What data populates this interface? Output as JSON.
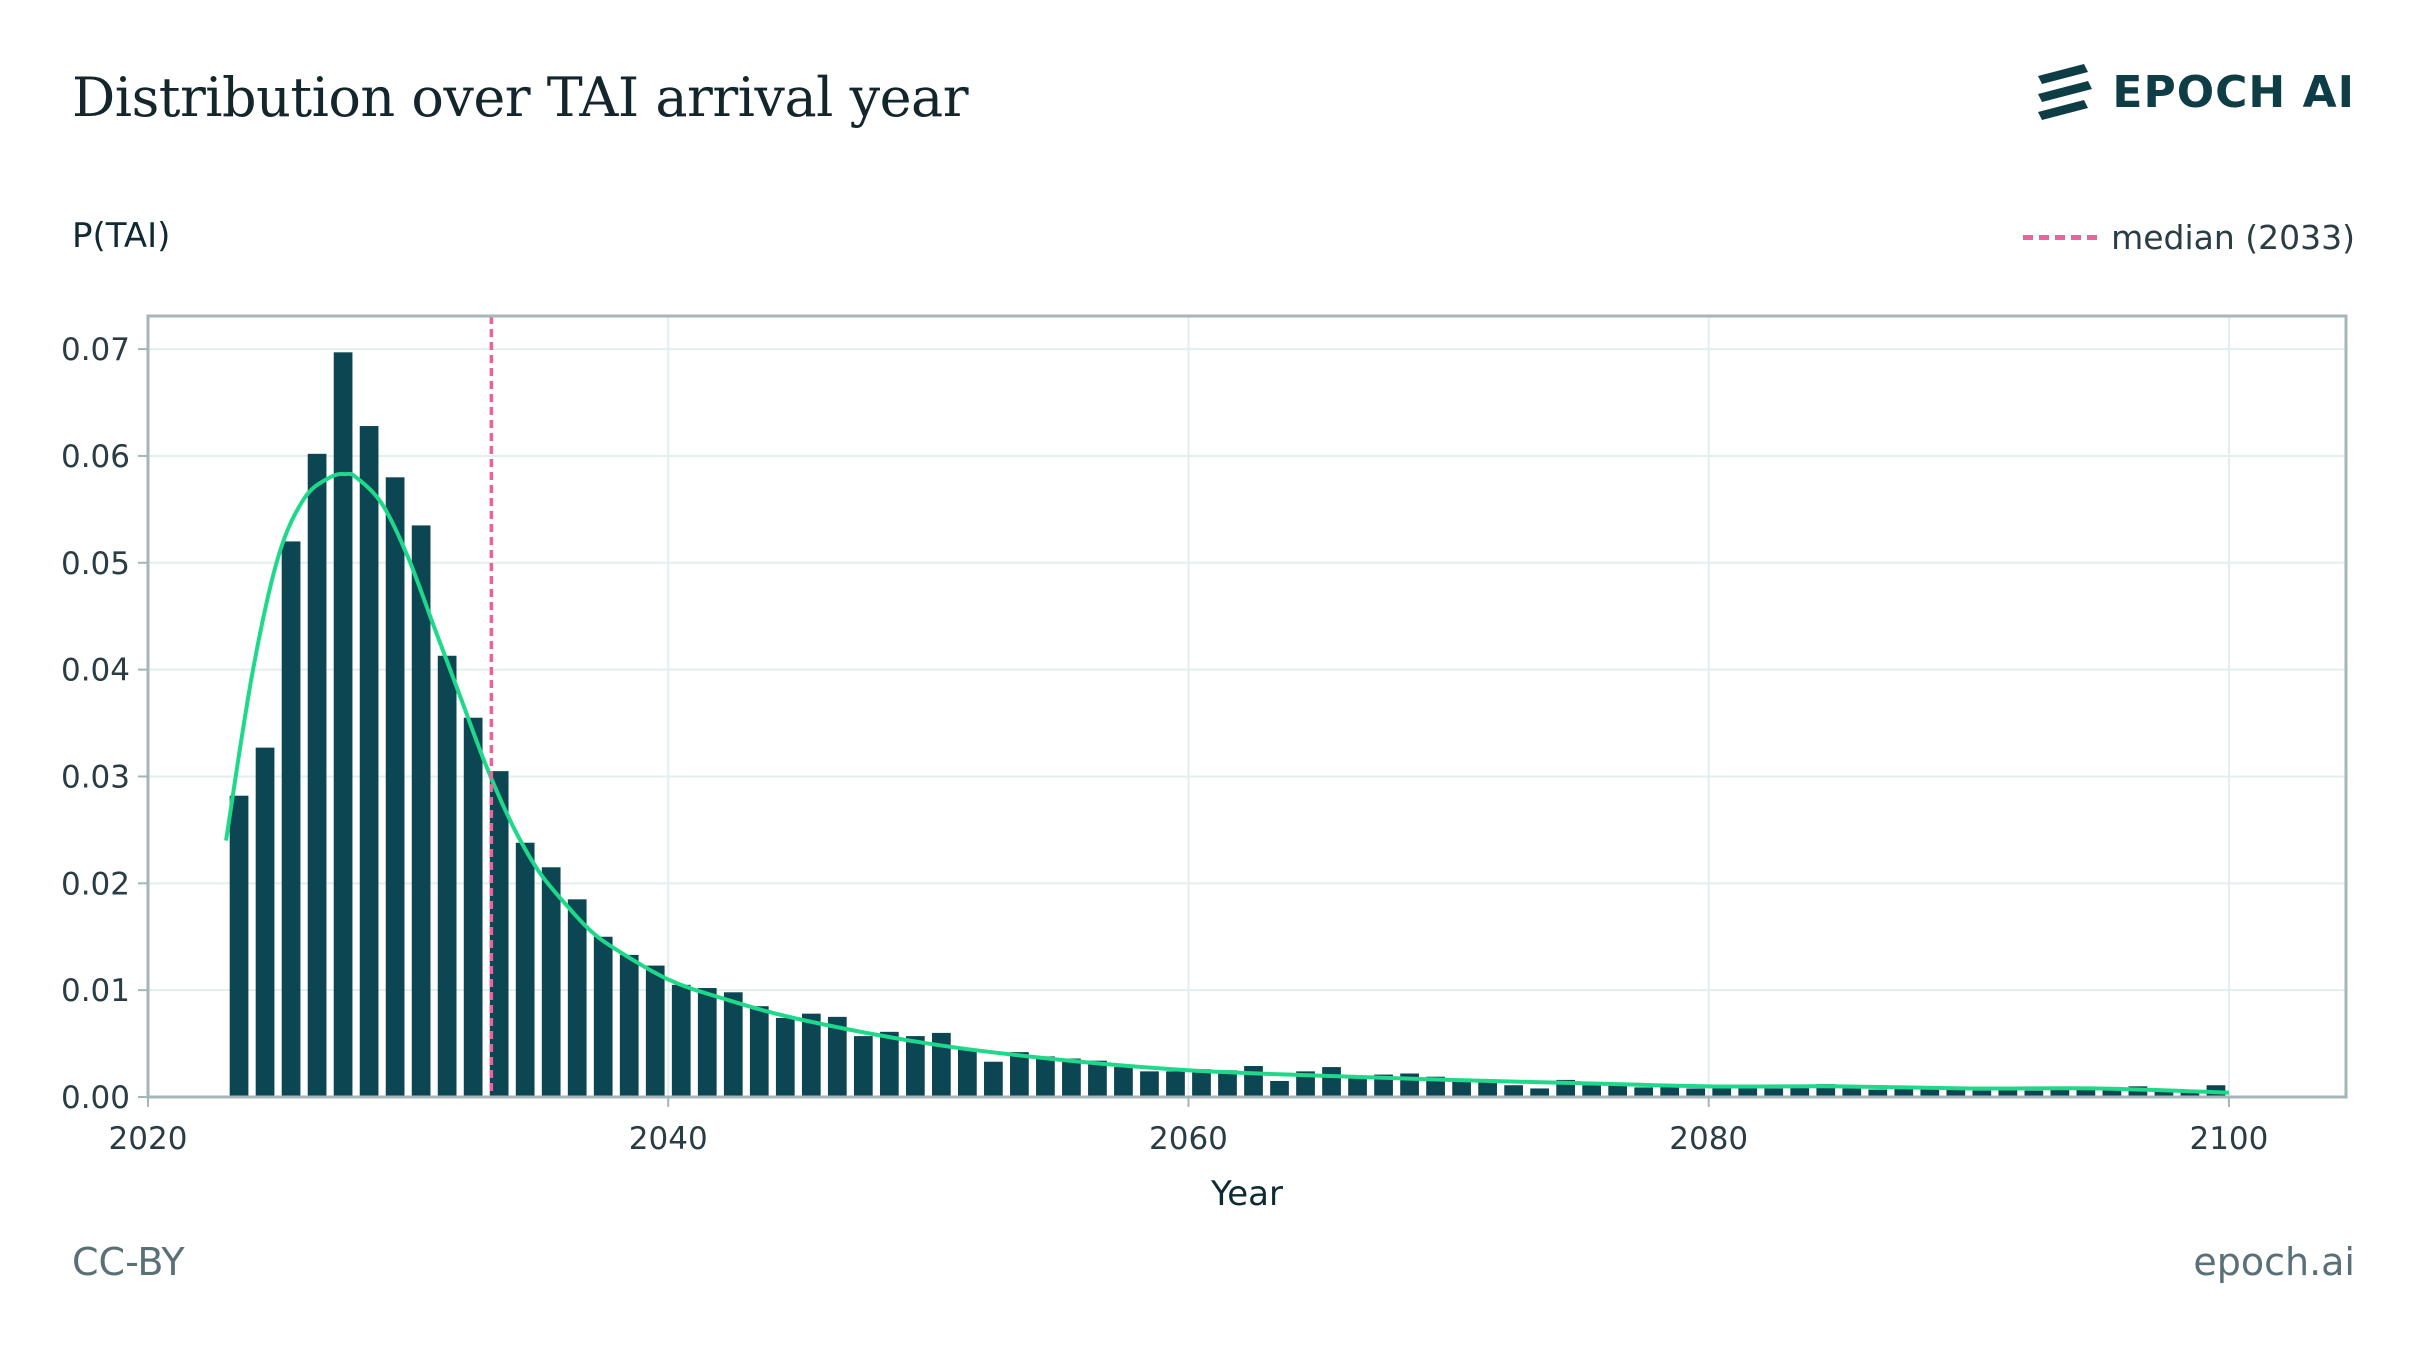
{
  "header": {
    "title": "Distribution over TAI arrival year",
    "brand": "EPOCH AI",
    "brand_icon": "epoch-logo-icon"
  },
  "footer": {
    "license": "CC-BY",
    "site": "epoch.ai"
  },
  "colors": {
    "bar": "#0b4652",
    "curve": "#1fd98a",
    "median": "#f0609a",
    "grid": "#e3eeee",
    "frame": "#a5b6ba"
  },
  "chart_data": {
    "type": "bar",
    "title": "Distribution over TAI arrival year",
    "xlabel": "Year",
    "ylabel": "P(TAI)",
    "xlim": [
      2020,
      2104.5
    ],
    "ylim": [
      0,
      0.0731
    ],
    "xticks": [
      2020,
      2040,
      2060,
      2080,
      2100
    ],
    "yticks": [
      0.0,
      0.01,
      0.02,
      0.03,
      0.04,
      0.05,
      0.06,
      0.07
    ],
    "grid": true,
    "legend_position": "top-right",
    "x": [
      2023,
      2024,
      2025,
      2026,
      2027,
      2028,
      2029,
      2030,
      2031,
      2032,
      2033,
      2034,
      2035,
      2036,
      2037,
      2038,
      2039,
      2040,
      2041,
      2042,
      2043,
      2044,
      2045,
      2046,
      2047,
      2048,
      2049,
      2050,
      2051,
      2052,
      2053,
      2054,
      2055,
      2056,
      2057,
      2058,
      2059,
      2060,
      2061,
      2062,
      2063,
      2064,
      2065,
      2066,
      2067,
      2068,
      2069,
      2070,
      2071,
      2072,
      2073,
      2074,
      2075,
      2076,
      2077,
      2078,
      2079,
      2080,
      2081,
      2082,
      2083,
      2084,
      2085,
      2086,
      2087,
      2088,
      2089,
      2090,
      2091,
      2092,
      2093,
      2094,
      2095,
      2096,
      2097,
      2098,
      2099
    ],
    "values": [
      0.0282,
      0.0327,
      0.052,
      0.0602,
      0.0697,
      0.0628,
      0.058,
      0.0535,
      0.0413,
      0.0355,
      0.0305,
      0.0238,
      0.0215,
      0.0185,
      0.015,
      0.0133,
      0.0123,
      0.0105,
      0.0102,
      0.0098,
      0.0085,
      0.0074,
      0.0078,
      0.0075,
      0.0057,
      0.0061,
      0.0057,
      0.006,
      0.0045,
      0.0033,
      0.0042,
      0.0038,
      0.0036,
      0.0034,
      0.0028,
      0.0024,
      0.0024,
      0.0026,
      0.0025,
      0.0029,
      0.0015,
      0.0024,
      0.0028,
      0.0018,
      0.0021,
      0.0022,
      0.0019,
      0.0016,
      0.0015,
      0.0011,
      0.0008,
      0.0016,
      0.0011,
      0.0012,
      0.0009,
      0.0011,
      0.0008,
      0.0009,
      0.001,
      0.0008,
      0.0009,
      0.0012,
      0.0008,
      0.0007,
      0.0008,
      0.0009,
      0.0007,
      0.0006,
      0.0007,
      0.0006,
      0.0007,
      0.0008,
      0.0007,
      0.001,
      0.0007,
      0.0006,
      0.0011
    ],
    "smooth_curve": {
      "x": [
        2023,
        2024,
        2025,
        2026,
        2027,
        2027.6,
        2028,
        2029,
        2030,
        2031,
        2032,
        2033,
        2034,
        2035,
        2036,
        2037,
        2038,
        2040,
        2042,
        2045,
        2050,
        2055,
        2060,
        2065,
        2070,
        2075,
        2080,
        2085,
        2090,
        2095,
        2100
      ],
      "y": [
        0.024,
        0.0395,
        0.0505,
        0.056,
        0.058,
        0.0583,
        0.058,
        0.0555,
        0.0505,
        0.044,
        0.0375,
        0.031,
        0.0255,
        0.0212,
        0.0182,
        0.0156,
        0.0138,
        0.011,
        0.0093,
        0.0073,
        0.005,
        0.0035,
        0.0025,
        0.002,
        0.0016,
        0.0013,
        0.001,
        0.001,
        0.0008,
        0.0008,
        0.0004
      ]
    },
    "median": {
      "year": 2033,
      "label": "median (2033)"
    }
  }
}
